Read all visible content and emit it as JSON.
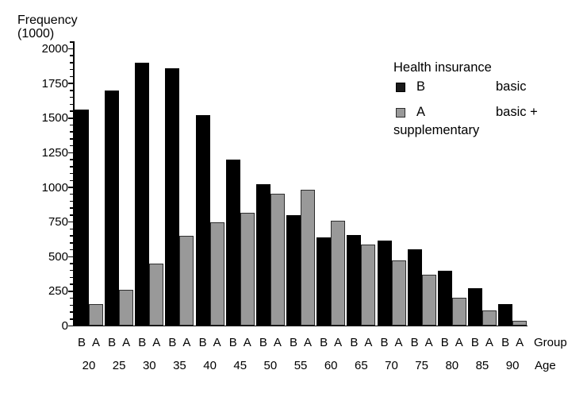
{
  "chart_data": {
    "type": "bar",
    "title": "",
    "ylabel_line1": "Frequency",
    "ylabel_line2": "(1000)",
    "xlabel": "",
    "categories": [
      "20",
      "25",
      "30",
      "35",
      "40",
      "45",
      "50",
      "55",
      "60",
      "65",
      "70",
      "75",
      "80",
      "85",
      "90"
    ],
    "series": [
      {
        "key": "B",
        "name": "basic",
        "color": "#000000",
        "values": [
          1560,
          1700,
          1900,
          1860,
          1520,
          1200,
          1025,
          800,
          640,
          655,
          615,
          555,
          400,
          275,
          160
        ]
      },
      {
        "key": "A",
        "name": "basic + supplementary",
        "color": "#999999",
        "values": [
          160,
          260,
          450,
          650,
          745,
          815,
          955,
          980,
          760,
          585,
          475,
          370,
          205,
          110,
          35
        ]
      }
    ],
    "y_axis": {
      "min": 0,
      "max": 2000,
      "major_step": 250,
      "minor_step": 50,
      "tick_labels": [
        "0",
        "250",
        "500",
        "750",
        "1000",
        "1250",
        "1500",
        "1750",
        "2000"
      ],
      "grid": false
    },
    "x_axis": {
      "group_row_label": "Group",
      "age_row_label": "Age"
    },
    "legend": {
      "position": "upper-right",
      "title": "Health insurance",
      "items": [
        {
          "key": "B",
          "desc": "basic",
          "color": "#000000"
        },
        {
          "key": "A",
          "desc": "basic +",
          "color": "#999999"
        }
      ],
      "wrap_line": "supplementary"
    }
  }
}
